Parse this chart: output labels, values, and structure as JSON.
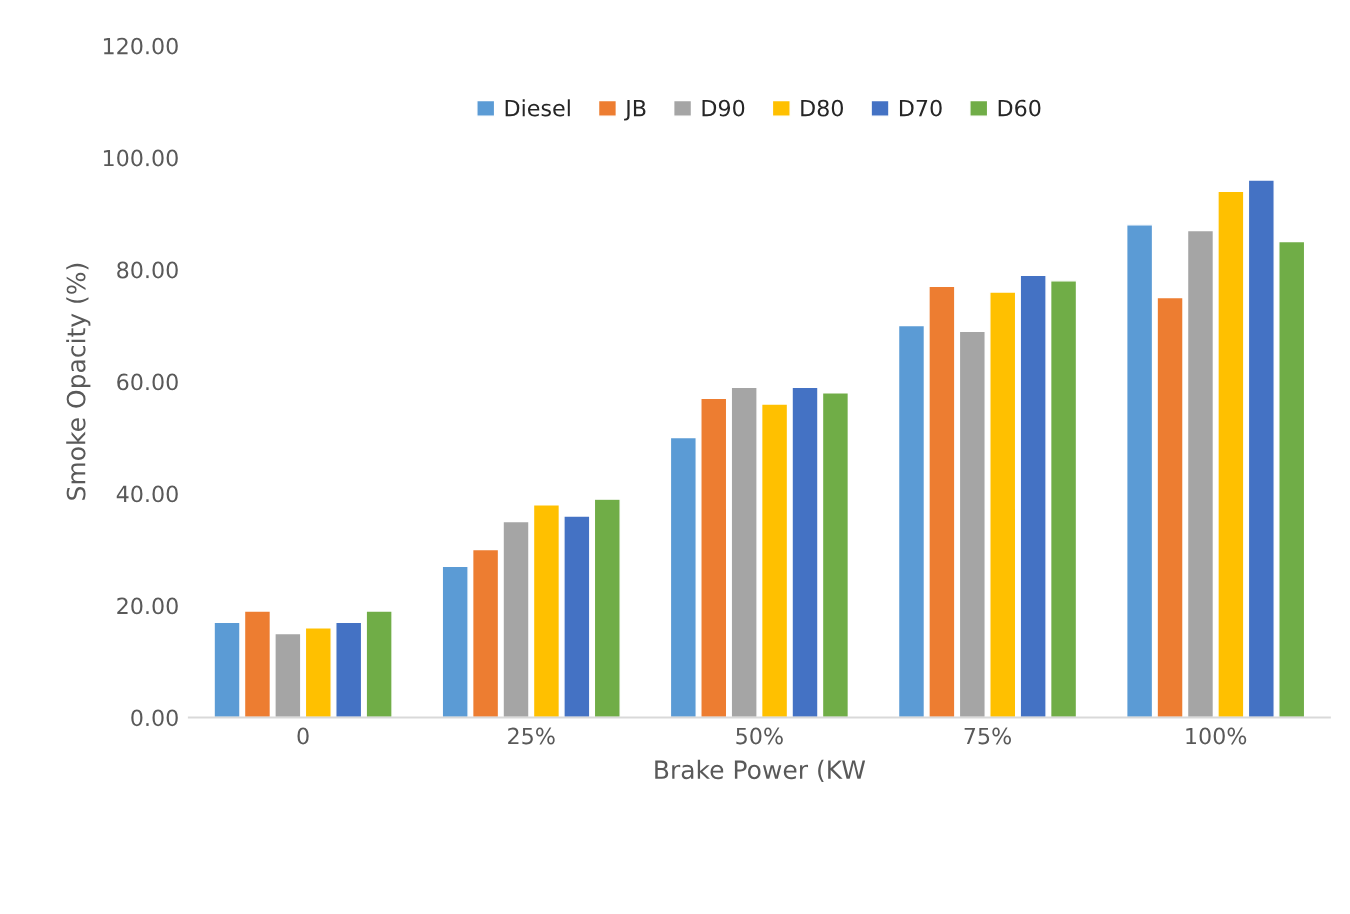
{
  "chart_data": {
    "type": "bar",
    "xlabel": "Brake Power (KW",
    "ylabel": "Smoke Opacity (%)",
    "categories": [
      "0",
      "25%",
      "50%",
      "75%",
      "100%"
    ],
    "series": [
      {
        "name": "Diesel",
        "color": "#5b9bd5",
        "values": [
          17,
          27,
          50,
          70,
          88
        ]
      },
      {
        "name": "JB",
        "color": "#ed7d31",
        "values": [
          19,
          30,
          57,
          77,
          75
        ]
      },
      {
        "name": "D90",
        "color": "#a5a5a5",
        "values": [
          15,
          35,
          59,
          69,
          87
        ]
      },
      {
        "name": "D80",
        "color": "#ffc000",
        "values": [
          16,
          38,
          56,
          76,
          94
        ]
      },
      {
        "name": "D70",
        "color": "#4472c4",
        "values": [
          17,
          36,
          59,
          79,
          96
        ]
      },
      {
        "name": "D60",
        "color": "#70ad47",
        "values": [
          19,
          39,
          58,
          78,
          85
        ]
      }
    ],
    "ylim": [
      0,
      120
    ],
    "yticks": [
      {
        "value": 0,
        "label": "0.00"
      },
      {
        "value": 20,
        "label": "20.00"
      },
      {
        "value": 40,
        "label": "40.00"
      },
      {
        "value": 60,
        "label": "60.00"
      },
      {
        "value": 80,
        "label": "80.00"
      },
      {
        "value": 100,
        "label": "100.00"
      },
      {
        "value": 120,
        "label": "120.00"
      }
    ],
    "grid": false,
    "legend": "top"
  }
}
